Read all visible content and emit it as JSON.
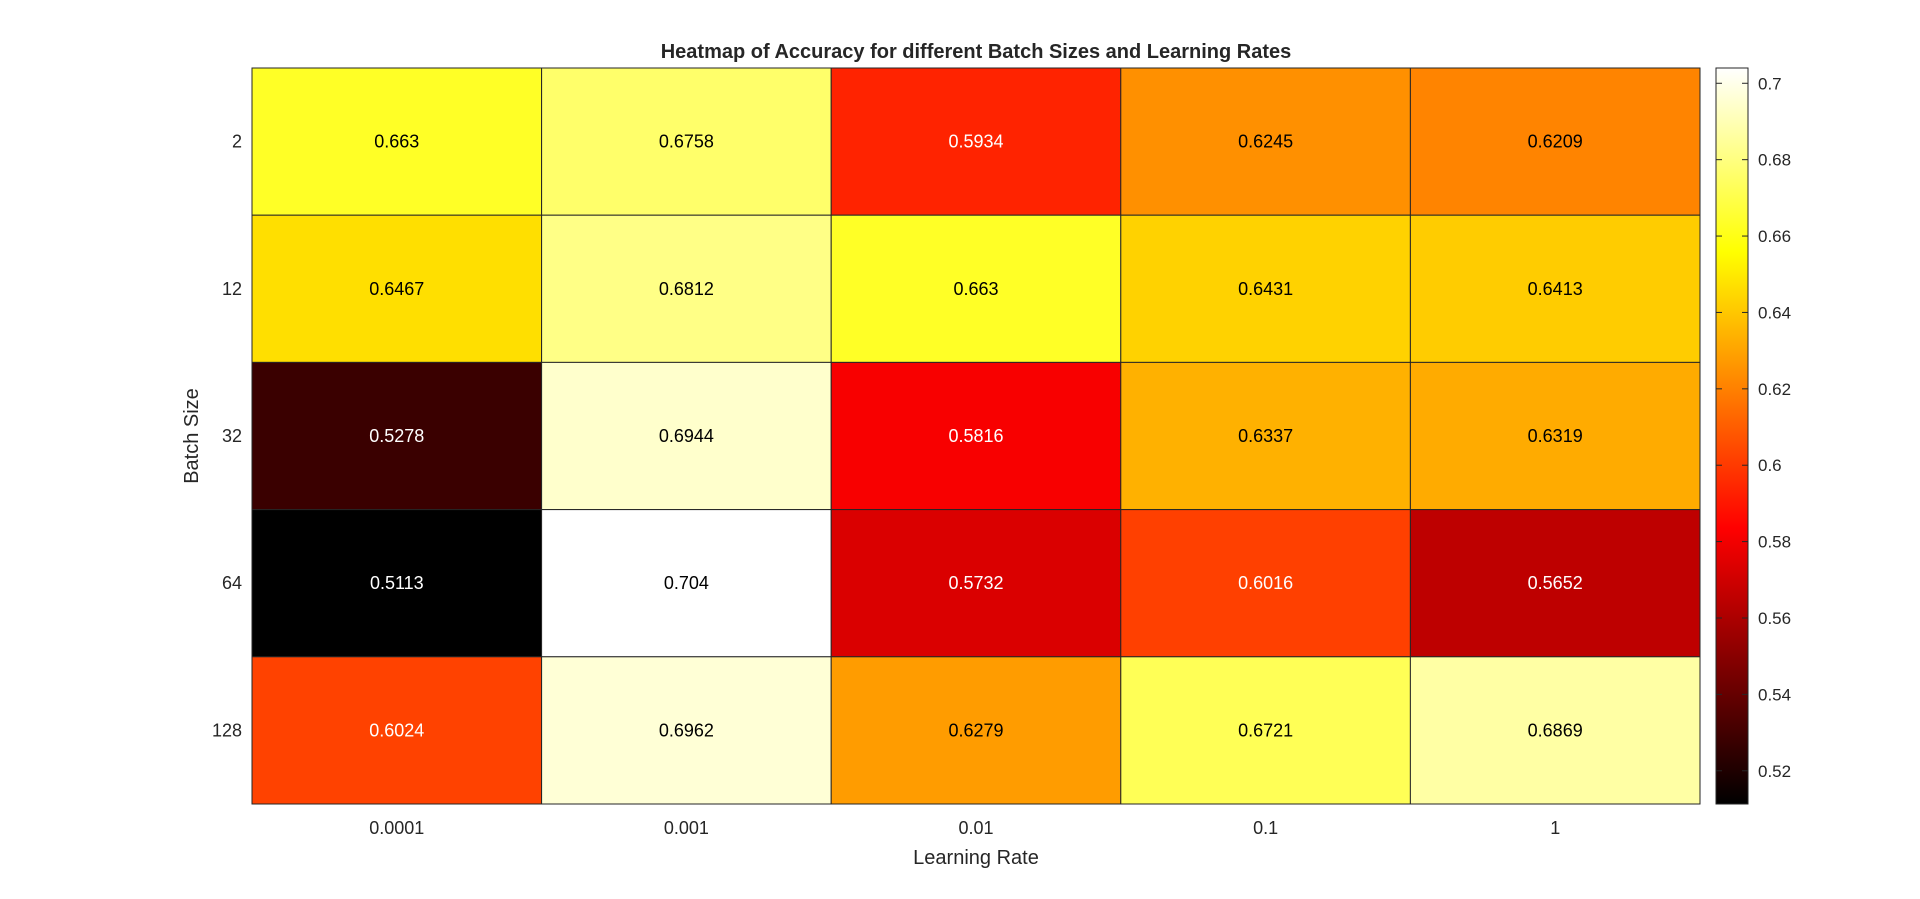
{
  "chart_data": {
    "type": "heatmap",
    "title": "Heatmap of Accuracy for different Batch Sizes and Learning Rates",
    "xlabel": "Learning Rate",
    "ylabel": "Batch Size",
    "x_categories": [
      "0.0001",
      "0.001",
      "0.01",
      "0.1",
      "1"
    ],
    "y_categories": [
      "2",
      "12",
      "32",
      "64",
      "128"
    ],
    "values": [
      [
        "0.663",
        "0.6758",
        "0.5934",
        "0.6245",
        "0.6209"
      ],
      [
        "0.6467",
        "0.6812",
        "0.663",
        "0.6431",
        "0.6413"
      ],
      [
        "0.5278",
        "0.6944",
        "0.5816",
        "0.6337",
        "0.6319"
      ],
      [
        "0.5113",
        "0.704",
        "0.5732",
        "0.6016",
        "0.5652"
      ],
      [
        "0.6024",
        "0.6962",
        "0.6279",
        "0.6721",
        "0.6869"
      ]
    ],
    "colormap": "hot",
    "color_range": [
      0.5113,
      0.704
    ],
    "colorbar_ticks": [
      "0.52",
      "0.54",
      "0.56",
      "0.58",
      "0.6",
      "0.62",
      "0.64",
      "0.66",
      "0.68",
      "0.7"
    ],
    "grid": true
  }
}
